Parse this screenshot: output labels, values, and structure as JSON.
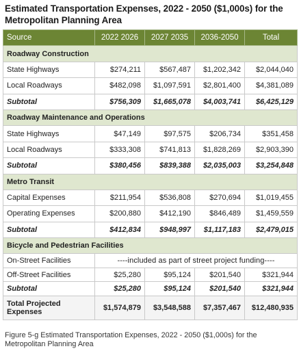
{
  "title": "Estimated Transportation Expenses, 2022 - 2050 ($1,000s) for the Metropolitan Planning Area",
  "columns": [
    "Source",
    "2022 2026",
    "2027 2035",
    "2036-2050",
    "Total"
  ],
  "sections": [
    {
      "name": "Roadway Construction",
      "rows": [
        {
          "label": "State Highways",
          "values": [
            "$274,211",
            "$567,487",
            "$1,202,342",
            "$2,044,040"
          ]
        },
        {
          "label": "Local Roadways",
          "values": [
            "$482,098",
            "$1,097,591",
            "$2,801,400",
            "$4,381,089"
          ]
        }
      ],
      "subtotal": {
        "label": "Subtotal",
        "values": [
          "$756,309",
          "$1,665,078",
          "$4,003,741",
          "$6,425,129"
        ]
      }
    },
    {
      "name": "Roadway Maintenance and Operations",
      "rows": [
        {
          "label": "State Highways",
          "values": [
            "$47,149",
            "$97,575",
            "$206,734",
            "$351,458"
          ]
        },
        {
          "label": "Local Roadways",
          "values": [
            "$333,308",
            "$741,813",
            "$1,828,269",
            "$2,903,390"
          ]
        }
      ],
      "subtotal": {
        "label": "Subtotal",
        "values": [
          "$380,456",
          "$839,388",
          "$2,035,003",
          "$3,254,848"
        ]
      }
    },
    {
      "name": "Metro Transit",
      "rows": [
        {
          "label": "Capital Expenses",
          "values": [
            "$211,954",
            "$536,808",
            "$270,694",
            "$1,019,455"
          ]
        },
        {
          "label": "Operating Expenses",
          "values": [
            "$200,880",
            "$412,190",
            "$846,489",
            "$1,459,559"
          ]
        }
      ],
      "subtotal": {
        "label": "Subtotal",
        "values": [
          "$412,834",
          "$948,997",
          "$1,117,183",
          "$2,479,015"
        ]
      }
    },
    {
      "name": "Bicycle and Pedestrian Facilities",
      "rows": [
        {
          "label": "On-Street Facilities",
          "note": "----included as part of street project funding----"
        },
        {
          "label": "Off-Street Facilities",
          "values": [
            "$25,280",
            "$95,124",
            "$201,540",
            "$321,944"
          ]
        }
      ],
      "subtotal": {
        "label": "Subtotal",
        "values": [
          "$25,280",
          "$95,124",
          "$201,540",
          "$321,944"
        ]
      }
    }
  ],
  "total": {
    "label": "Total Projected Expenses",
    "values": [
      "$1,574,879",
      "$3,548,588",
      "$7,357,467",
      "$12,480,935"
    ]
  },
  "caption": "Figure 5-g Estimated Transportation Expenses, 2022 - 2050 ($1,000s) for the Metropolitan Planning Area",
  "colors": {
    "header": "#6c8534",
    "section": "#dfe7cf"
  }
}
